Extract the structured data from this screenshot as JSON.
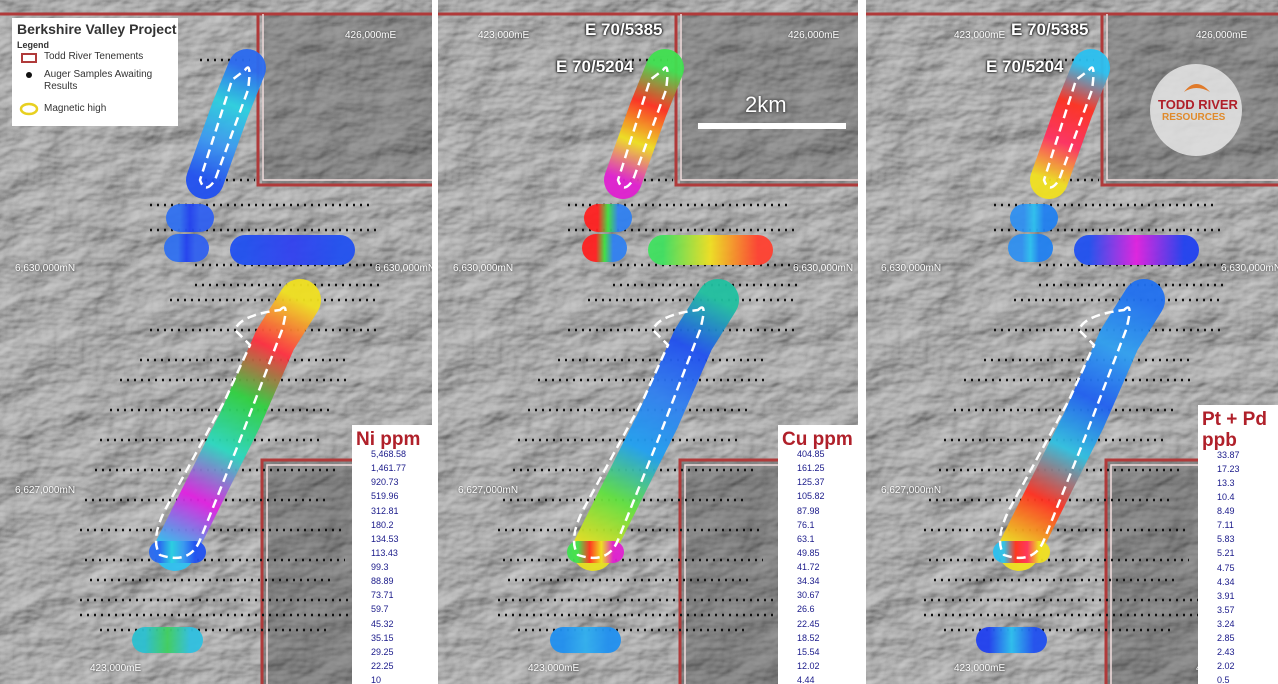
{
  "header": {
    "title": "Berkshire Valley Project",
    "legend_title": "Legend",
    "legend_items": [
      "Todd River Tenements",
      "Auger Samples Awaiting Results",
      "Magnetic high"
    ]
  },
  "panels": [
    {
      "grid_labels": [
        "426,000mE",
        "6,630,000mN",
        "6,630,000mN",
        "6,627,000mN",
        "423,000mE",
        "426,00"
      ],
      "legend": {
        "title_lines": [
          "Ni ppm"
        ],
        "values": [
          "5,468.58",
          "1,461.77",
          "920.73",
          "519.96",
          "312.81",
          "180.2",
          "134.53",
          "113.43",
          "99.3",
          "88.89",
          "73.71",
          "59.7",
          "45.32",
          "35.15",
          "29.25",
          "22.25",
          "10"
        ]
      }
    },
    {
      "grid_labels": [
        "423,000mE",
        "426,000mE",
        "6,630,000mN",
        "6,630,000mN",
        "6,627,000mN",
        "423,000mE"
      ],
      "tenements": [
        "E 70/5385",
        "E 70/5204"
      ],
      "scale_bar": "2km",
      "legend": {
        "title_lines": [
          "Cu ppm"
        ],
        "values": [
          "404.85",
          "161.25",
          "125.37",
          "105.82",
          "87.98",
          "76.1",
          "63.1",
          "49.85",
          "41.72",
          "34.34",
          "30.67",
          "26.6",
          "22.45",
          "18.52",
          "15.54",
          "12.02",
          "4.44"
        ]
      }
    },
    {
      "grid_labels": [
        "423,000mE",
        "426,000mE",
        "6,630,000mN",
        "6,630,000mN",
        "6,627,000mN",
        "423,000mE",
        "426,00"
      ],
      "tenements": [
        "E 70/5385",
        "E 70/5204"
      ],
      "logo": [
        "TODD RIVER",
        "RESOURCES"
      ],
      "legend": {
        "title_lines": [
          "Pt + Pd",
          "ppb"
        ],
        "values": [
          "33.87",
          "17.23",
          "13.3",
          "10.4",
          "8.49",
          "7.11",
          "5.83",
          "5.21",
          "4.75",
          "4.34",
          "3.91",
          "3.57",
          "3.24",
          "2.85",
          "2.43",
          "2.02",
          "0.5"
        ]
      }
    }
  ]
}
